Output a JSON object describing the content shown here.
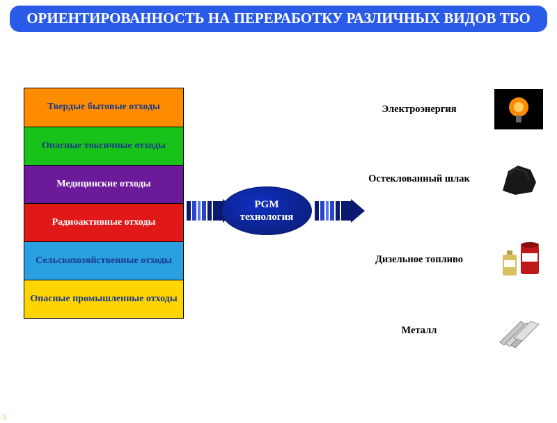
{
  "title": "ОРИЕНТИРОВАННОСТЬ НА ПЕРЕРАБОТКУ РАЗЛИЧНЫХ ВИДОВ ТБО",
  "banner": {
    "bg": "#2a5ae8",
    "text_color": "#ffffff",
    "border": "#2a5ae8"
  },
  "page_number": "5",
  "inputs": [
    {
      "label": "Твердые бытовые отходы",
      "bg": "#ff8c00",
      "fg": "#1a3a8a"
    },
    {
      "label": "Опасные токсичные отходы",
      "bg": "#19c219",
      "fg": "#1a3a8a"
    },
    {
      "label": "Медицинские отходы",
      "bg": "#6b1a9a",
      "fg": "#ffffff"
    },
    {
      "label": "Радиоактивные отходы",
      "bg": "#e01818",
      "fg": "#ffffff"
    },
    {
      "label": "Сельскохозяйственные отходы",
      "bg": "#2aa0e0",
      "fg": "#1a3a8a"
    },
    {
      "label": "Опасные промышленные отходы",
      "bg": "#ffd400",
      "fg": "#1a3a8a"
    }
  ],
  "center": {
    "label_line1": "PGM",
    "label_line2": "технология",
    "fill": "#1030c0",
    "stroke": "#0a1a70"
  },
  "arrow": {
    "shaft_darks": "#0a1a70",
    "shaft_mid": "#2a46c8",
    "shaft_light": "#5a78e8",
    "head": "#0a1a70"
  },
  "outputs": [
    {
      "label": "Электроэнергия",
      "icon": "bulb"
    },
    {
      "label": "Остеклованный шлак",
      "icon": "slag"
    },
    {
      "label": "Дизельное топливо",
      "icon": "fuel"
    },
    {
      "label": "Металл",
      "icon": "metal"
    }
  ],
  "layout": {
    "output_row_tops": [
      12,
      112,
      228,
      330
    ]
  }
}
